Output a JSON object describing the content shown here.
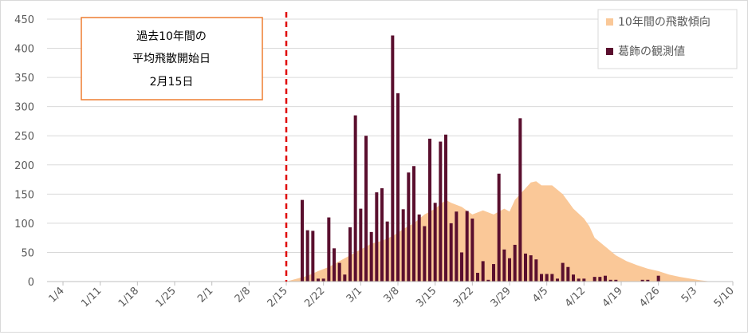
{
  "colors": {
    "area": "#fac898",
    "bar": "#5a0f2e",
    "grid": "#d9d9d9",
    "annotation_line": "#e00000",
    "annotation_box": "#ed7d31"
  },
  "annotation": {
    "line1": "過去10年間の",
    "line2": "平均飛散開始日",
    "line3": "2月15日"
  },
  "chart_data": {
    "type": "bar",
    "ylim": [
      0,
      450
    ],
    "yticks": [
      0,
      50,
      100,
      150,
      200,
      250,
      300,
      350,
      400,
      450
    ],
    "xlim": [
      0,
      129
    ],
    "xticks": [
      {
        "day": 3,
        "label": "1/4"
      },
      {
        "day": 10,
        "label": "1/11"
      },
      {
        "day": 17,
        "label": "1/18"
      },
      {
        "day": 24,
        "label": "1/25"
      },
      {
        "day": 31,
        "label": "2/1"
      },
      {
        "day": 38,
        "label": "2/8"
      },
      {
        "day": 45,
        "label": "2/15"
      },
      {
        "day": 52,
        "label": "2/22"
      },
      {
        "day": 59,
        "label": "3/1"
      },
      {
        "day": 66,
        "label": "3/8"
      },
      {
        "day": 73,
        "label": "3/15"
      },
      {
        "day": 80,
        "label": "3/22"
      },
      {
        "day": 87,
        "label": "3/29"
      },
      {
        "day": 94,
        "label": "4/5"
      },
      {
        "day": 101,
        "label": "4/12"
      },
      {
        "day": 108,
        "label": "4/19"
      },
      {
        "day": 115,
        "label": "4/26"
      },
      {
        "day": 122,
        "label": "5/3"
      },
      {
        "day": 129,
        "label": "5/10"
      }
    ],
    "annotation_day": 45,
    "legend_position": "top-right",
    "series": [
      {
        "name": "10年間の飛散傾向",
        "kind": "area",
        "points": [
          [
            45,
            0
          ],
          [
            47,
            5
          ],
          [
            49,
            10
          ],
          [
            51,
            18
          ],
          [
            53,
            25
          ],
          [
            55,
            35
          ],
          [
            57,
            45
          ],
          [
            59,
            55
          ],
          [
            61,
            65
          ],
          [
            63,
            70
          ],
          [
            65,
            78
          ],
          [
            67,
            90
          ],
          [
            69,
            100
          ],
          [
            71,
            115
          ],
          [
            73,
            125
          ],
          [
            75,
            140
          ],
          [
            76,
            135
          ],
          [
            78,
            128
          ],
          [
            80,
            115
          ],
          [
            82,
            122
          ],
          [
            84,
            115
          ],
          [
            86,
            125
          ],
          [
            87,
            120
          ],
          [
            88,
            140
          ],
          [
            90,
            160
          ],
          [
            91,
            170
          ],
          [
            92,
            172
          ],
          [
            93,
            165
          ],
          [
            95,
            165
          ],
          [
            97,
            150
          ],
          [
            99,
            125
          ],
          [
            101,
            108
          ],
          [
            102,
            95
          ],
          [
            103,
            75
          ],
          [
            105,
            60
          ],
          [
            107,
            45
          ],
          [
            109,
            35
          ],
          [
            111,
            28
          ],
          [
            113,
            22
          ],
          [
            115,
            18
          ],
          [
            117,
            12
          ],
          [
            119,
            8
          ],
          [
            121,
            5
          ],
          [
            123,
            2
          ],
          [
            125,
            0
          ]
        ]
      },
      {
        "name": "葛飾の観測値",
        "kind": "bar",
        "points": [
          [
            48,
            140
          ],
          [
            49,
            88
          ],
          [
            50,
            87
          ],
          [
            51,
            5
          ],
          [
            52,
            5
          ],
          [
            53,
            110
          ],
          [
            54,
            57
          ],
          [
            55,
            32
          ],
          [
            56,
            12
          ],
          [
            57,
            93
          ],
          [
            58,
            285
          ],
          [
            59,
            125
          ],
          [
            60,
            250
          ],
          [
            61,
            85
          ],
          [
            62,
            153
          ],
          [
            63,
            160
          ],
          [
            64,
            103
          ],
          [
            65,
            422
          ],
          [
            66,
            323
          ],
          [
            67,
            124
          ],
          [
            68,
            187
          ],
          [
            69,
            198
          ],
          [
            70,
            115
          ],
          [
            71,
            95
          ],
          [
            72,
            245
          ],
          [
            73,
            135
          ],
          [
            74,
            240
          ],
          [
            75,
            252
          ],
          [
            76,
            100
          ],
          [
            77,
            120
          ],
          [
            78,
            50
          ],
          [
            79,
            121
          ],
          [
            80,
            108
          ],
          [
            81,
            15
          ],
          [
            82,
            35
          ],
          [
            83,
            3
          ],
          [
            84,
            30
          ],
          [
            85,
            185
          ],
          [
            86,
            55
          ],
          [
            87,
            40
          ],
          [
            88,
            63
          ],
          [
            89,
            280
          ],
          [
            90,
            48
          ],
          [
            91,
            45
          ],
          [
            92,
            38
          ],
          [
            93,
            13
          ],
          [
            94,
            13
          ],
          [
            95,
            13
          ],
          [
            96,
            5
          ],
          [
            97,
            32
          ],
          [
            98,
            25
          ],
          [
            99,
            12
          ],
          [
            100,
            5
          ],
          [
            101,
            5
          ],
          [
            102,
            0
          ],
          [
            103,
            8
          ],
          [
            104,
            8
          ],
          [
            105,
            10
          ],
          [
            106,
            3
          ],
          [
            107,
            3
          ],
          [
            112,
            3
          ],
          [
            113,
            3
          ],
          [
            115,
            10
          ]
        ]
      }
    ]
  }
}
